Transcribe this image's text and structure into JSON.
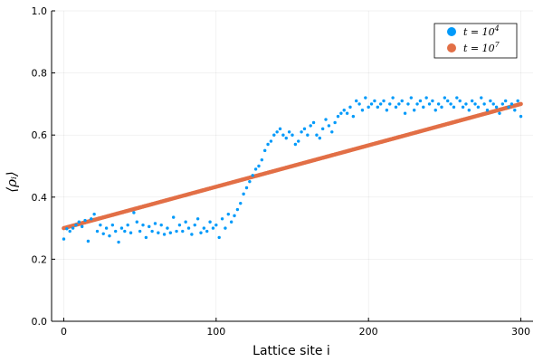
{
  "chart_data": {
    "type": "scatter",
    "title": "",
    "xlabel": "Lattice site i",
    "ylabel": "⟨ρᵢ⟩",
    "xlim": [
      -8,
      308
    ],
    "ylim": [
      0.0,
      1.0
    ],
    "xticks": [
      0,
      100,
      200,
      300
    ],
    "xtick_labels": [
      "0",
      "100",
      "200",
      "300"
    ],
    "yticks": [
      0.0,
      0.2,
      0.4,
      0.6,
      0.8,
      1.0
    ],
    "ytick_labels": [
      "0.0",
      "0.2",
      "0.4",
      "0.6",
      "0.8",
      "1.0"
    ],
    "grid": true,
    "legend_position": "top-right",
    "series": [
      {
        "name": "t = 10^4",
        "legend_base": "t = 10",
        "legend_exp": "4",
        "color": "#009AFA",
        "x": [
          0,
          2,
          4,
          6,
          8,
          10,
          12,
          14,
          16,
          18,
          20,
          22,
          24,
          26,
          28,
          30,
          32,
          34,
          36,
          38,
          40,
          42,
          44,
          46,
          48,
          50,
          52,
          54,
          56,
          58,
          60,
          62,
          64,
          66,
          68,
          70,
          72,
          74,
          76,
          78,
          80,
          82,
          84,
          86,
          88,
          90,
          92,
          94,
          96,
          98,
          100,
          102,
          104,
          106,
          108,
          110,
          112,
          114,
          116,
          118,
          120,
          122,
          124,
          126,
          128,
          130,
          132,
          134,
          136,
          138,
          140,
          142,
          144,
          146,
          148,
          150,
          152,
          154,
          156,
          158,
          160,
          162,
          164,
          166,
          168,
          170,
          172,
          174,
          176,
          178,
          180,
          182,
          184,
          186,
          188,
          190,
          192,
          194,
          196,
          198,
          200,
          202,
          204,
          206,
          208,
          210,
          212,
          214,
          216,
          218,
          220,
          222,
          224,
          226,
          228,
          230,
          232,
          234,
          236,
          238,
          240,
          242,
          244,
          246,
          248,
          250,
          252,
          254,
          256,
          258,
          260,
          262,
          264,
          266,
          268,
          270,
          272,
          274,
          276,
          278,
          280,
          282,
          284,
          286,
          288,
          290,
          292,
          294,
          296,
          298,
          300
        ],
        "y": [
          0.265,
          0.298,
          0.29,
          0.3,
          0.31,
          0.32,
          0.305,
          0.325,
          0.258,
          0.33,
          0.345,
          0.29,
          0.31,
          0.282,
          0.3,
          0.275,
          0.31,
          0.29,
          0.255,
          0.3,
          0.29,
          0.31,
          0.285,
          0.35,
          0.32,
          0.29,
          0.31,
          0.27,
          0.305,
          0.29,
          0.315,
          0.285,
          0.31,
          0.28,
          0.3,
          0.285,
          0.335,
          0.29,
          0.31,
          0.29,
          0.32,
          0.3,
          0.28,
          0.31,
          0.33,
          0.285,
          0.3,
          0.29,
          0.32,
          0.3,
          0.31,
          0.27,
          0.33,
          0.3,
          0.345,
          0.32,
          0.34,
          0.36,
          0.38,
          0.41,
          0.43,
          0.45,
          0.47,
          0.49,
          0.5,
          0.52,
          0.55,
          0.57,
          0.58,
          0.6,
          0.61,
          0.62,
          0.6,
          0.59,
          0.61,
          0.6,
          0.57,
          0.58,
          0.61,
          0.62,
          0.6,
          0.63,
          0.64,
          0.6,
          0.59,
          0.62,
          0.65,
          0.63,
          0.61,
          0.64,
          0.66,
          0.67,
          0.68,
          0.67,
          0.69,
          0.66,
          0.71,
          0.7,
          0.68,
          0.72,
          0.69,
          0.7,
          0.71,
          0.69,
          0.7,
          0.71,
          0.68,
          0.7,
          0.72,
          0.69,
          0.7,
          0.71,
          0.67,
          0.7,
          0.72,
          0.68,
          0.7,
          0.71,
          0.69,
          0.72,
          0.7,
          0.71,
          0.68,
          0.7,
          0.69,
          0.72,
          0.71,
          0.7,
          0.69,
          0.72,
          0.71,
          0.69,
          0.7,
          0.68,
          0.71,
          0.7,
          0.69,
          0.72,
          0.7,
          0.68,
          0.71,
          0.7,
          0.69,
          0.67,
          0.7,
          0.71,
          0.69,
          0.7,
          0.68,
          0.71,
          0.66
        ]
      },
      {
        "name": "t = 10^7",
        "legend_base": "t = 10",
        "legend_exp": "7",
        "color": "#E26F46",
        "x_range": [
          0,
          300
        ],
        "y_start": 0.3,
        "y_end": 0.7
      }
    ]
  }
}
